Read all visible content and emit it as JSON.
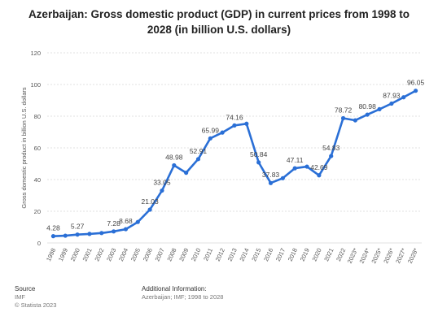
{
  "title": "Azerbaijan: Gross domestic product (GDP) in current prices from 1998 to 2028 (in billion U.S. dollars)",
  "footer": {
    "source_heading": "Source",
    "source_name": "IMF",
    "copyright": "© Statista 2023",
    "additional_heading": "Additional Information:",
    "additional_text": "Azerbaijan; IMF; 1998 to 2028"
  },
  "colors": {
    "line": "#2a6fd6",
    "grid": "#d9d9d9",
    "text": "#555555"
  },
  "chart_data": {
    "type": "line",
    "ylabel": "Gross domestic product in billion U.S. dollars",
    "xlabel": "",
    "ylim": [
      0,
      120
    ],
    "yticks": [
      0,
      20,
      40,
      60,
      80,
      100,
      120
    ],
    "grid": true,
    "categories": [
      "1998",
      "1999",
      "2000",
      "2001",
      "2002",
      "2003",
      "2004",
      "2005",
      "2006",
      "2007",
      "2008",
      "2009",
      "2010",
      "2011",
      "2012",
      "2013",
      "2014",
      "2015",
      "2016",
      "2017",
      "2018",
      "2019",
      "2020",
      "2021",
      "2022",
      "2023*",
      "2024*",
      "2025*",
      "2026*",
      "2027*",
      "2028*"
    ],
    "values": [
      4.28,
      4.58,
      5.27,
      5.71,
      6.24,
      7.28,
      8.68,
      13.24,
      21.03,
      33.05,
      48.98,
      44.29,
      52.91,
      65.99,
      69.68,
      74.16,
      75.24,
      50.84,
      37.83,
      40.87,
      47.11,
      48.17,
      42.69,
      54.83,
      78.72,
      77.39,
      80.98,
      84.41,
      87.93,
      91.94,
      96.05
    ],
    "data_labels": [
      {
        "index": 0,
        "text": "4.28"
      },
      {
        "index": 2,
        "text": "5.27"
      },
      {
        "index": 5,
        "text": "7.28"
      },
      {
        "index": 6,
        "text": "8.68"
      },
      {
        "index": 8,
        "text": "21.03"
      },
      {
        "index": 9,
        "text": "33.05"
      },
      {
        "index": 10,
        "text": "48.98"
      },
      {
        "index": 12,
        "text": "52.91"
      },
      {
        "index": 13,
        "text": "65.99"
      },
      {
        "index": 15,
        "text": "74.16"
      },
      {
        "index": 17,
        "text": "50.84"
      },
      {
        "index": 18,
        "text": "37.83"
      },
      {
        "index": 20,
        "text": "47.11"
      },
      {
        "index": 22,
        "text": "42.69"
      },
      {
        "index": 23,
        "text": "54.83"
      },
      {
        "index": 24,
        "text": "78.72"
      },
      {
        "index": 26,
        "text": "80.98"
      },
      {
        "index": 28,
        "text": "87.93"
      },
      {
        "index": 30,
        "text": "96.05"
      }
    ]
  }
}
